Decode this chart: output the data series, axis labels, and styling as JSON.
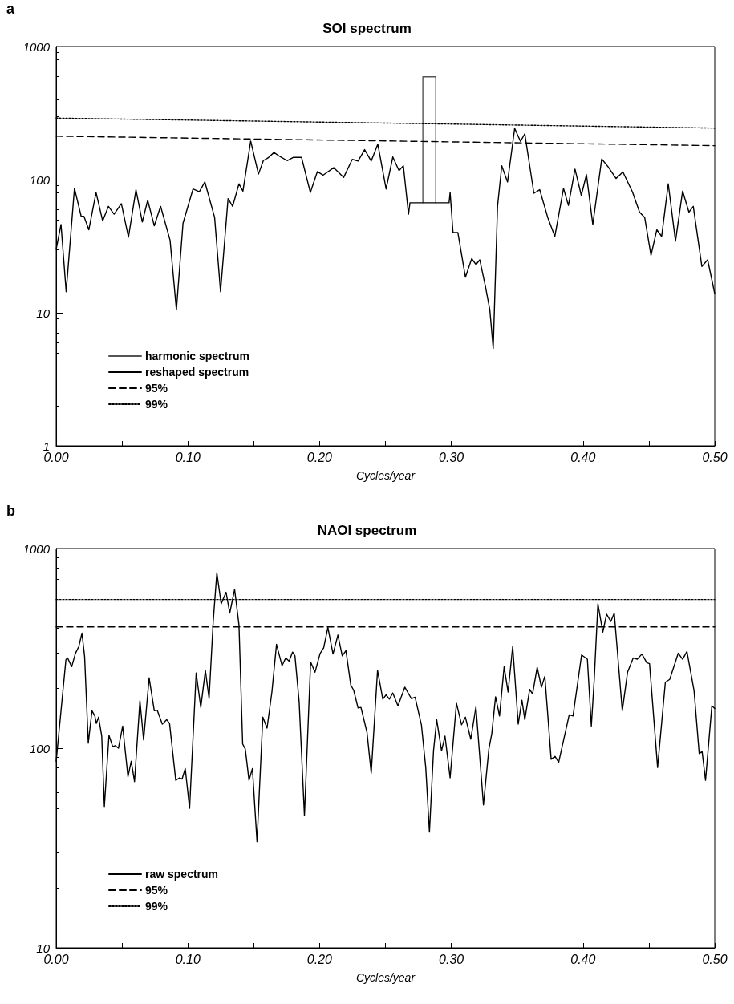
{
  "chart_data": [
    {
      "type": "line",
      "title": "SOI spectrum",
      "xlabel": "Cycles/year",
      "annotations": [
        "a"
      ],
      "log": true,
      "legend": "bottom left",
      "marker": "none",
      "xlim": [
        0,
        0.5
      ],
      "xticks": [
        {
          "value": 0,
          "label": "0.00"
        },
        {
          "value": 0.05,
          "label": null
        },
        {
          "value": 0.1,
          "label": "0.10"
        },
        {
          "value": 0.15,
          "label": null
        },
        {
          "value": 0.2,
          "label": "0.20"
        },
        {
          "value": 0.25,
          "label": null
        },
        {
          "value": 0.3,
          "label": "0.30"
        },
        {
          "value": 0.35,
          "label": null
        },
        {
          "value": 0.4,
          "label": "0.40"
        },
        {
          "value": 0.45,
          "label": null
        },
        {
          "value": 0.5,
          "label": "0.50"
        }
      ],
      "ylim": [
        1,
        1000
      ],
      "yticks": [
        1,
        10,
        100,
        1000
      ],
      "series": [
        {
          "name": "harmonic spectrum",
          "color": "#555555",
          "line_style": "solid",
          "x": [
            0.2784,
            0.2784,
            0.2882,
            0.2882
          ],
          "values": [
            67,
            592,
            592,
            67
          ]
        },
        {
          "name": "reshaped spectrum",
          "color": "#000000",
          "line_style": "solid",
          "x": [
            0,
            0.0037,
            0.0076,
            0.0139,
            0.019,
            0.0211,
            0.0248,
            0.0303,
            0.0353,
            0.0397,
            0.044,
            0.0495,
            0.0549,
            0.0606,
            0.0654,
            0.0695,
            0.0745,
            0.0793,
            0.0865,
            0.0913,
            0.0963,
            0.1039,
            0.1087,
            0.1129,
            0.1203,
            0.1248,
            0.1305,
            0.134,
            0.1388,
            0.1418,
            0.1477,
            0.1536,
            0.1573,
            0.1606,
            0.1654,
            0.1704,
            0.1754,
            0.1802,
            0.1863,
            0.193,
            0.1983,
            0.2026,
            0.2107,
            0.2183,
            0.2248,
            0.2292,
            0.2342,
            0.2392,
            0.2442,
            0.2505,
            0.2556,
            0.2603,
            0.2636,
            0.2675,
            0.2686,
            0.2983,
            0.2991,
            0.3013,
            0.305,
            0.3107,
            0.3155,
            0.3187,
            0.3216,
            0.3259,
            0.3292,
            0.3318,
            0.3351,
            0.3383,
            0.3427,
            0.3481,
            0.3525,
            0.3558,
            0.3627,
            0.3671,
            0.3732,
            0.3786,
            0.3852,
            0.3889,
            0.3939,
            0.3987,
            0.4026,
            0.4074,
            0.4142,
            0.419,
            0.4251,
            0.4303,
            0.4375,
            0.4429,
            0.4468,
            0.4516,
            0.456,
            0.4597,
            0.4647,
            0.4702,
            0.4756,
            0.4804,
            0.4837,
            0.4902,
            0.4946,
            0.5
          ],
          "values": [
            30,
            46,
            14.4,
            86,
            53,
            53,
            42,
            80,
            49,
            63,
            55,
            66,
            37,
            84,
            48,
            70,
            45,
            63,
            35,
            10.5,
            47,
            85,
            81,
            96,
            52,
            14.4,
            72,
            63,
            93,
            82,
            195,
            110,
            139,
            145,
            160,
            148,
            139,
            147,
            147,
            80,
            115,
            108,
            123,
            104,
            142,
            138,
            168,
            138,
            185,
            85,
            148,
            117,
            127,
            55,
            67,
            67,
            80,
            40,
            40,
            18.5,
            25.5,
            23,
            25,
            15.8,
            10.6,
            5.4,
            63,
            127,
            96,
            243,
            194,
            221,
            79,
            84,
            52,
            37.5,
            86,
            64,
            120,
            76,
            109,
            46,
            143,
            125,
            102,
            114,
            81,
            57,
            52,
            27,
            42,
            37.5,
            93,
            34.5,
            82,
            57,
            63,
            22.3,
            25,
            13.9
          ]
        },
        {
          "name": "95%",
          "color": "#000000",
          "line_style": "dashed",
          "x": [
            0,
            0.5
          ],
          "values": [
            212,
            180
          ]
        },
        {
          "name": "99%",
          "color": "#000000",
          "line_style": "dotted",
          "x": [
            0,
            0.5
          ],
          "values": [
            290,
            244
          ]
        }
      ]
    },
    {
      "type": "line",
      "title": "NAOI spectrum",
      "xlabel": "Cycles/year",
      "annotations": [
        "b"
      ],
      "log": true,
      "legend": "bottom left",
      "marker": "none",
      "xlim": [
        0,
        0.5
      ],
      "xticks": [
        {
          "value": 0,
          "label": "0.00"
        },
        {
          "value": 0.05,
          "label": null
        },
        {
          "value": 0.1,
          "label": "0.10"
        },
        {
          "value": 0.15,
          "label": null
        },
        {
          "value": 0.2,
          "label": "0.20"
        },
        {
          "value": 0.25,
          "label": null
        },
        {
          "value": 0.3,
          "label": "0.30"
        },
        {
          "value": 0.35,
          "label": null
        },
        {
          "value": 0.4,
          "label": "0.40"
        },
        {
          "value": 0.45,
          "label": null
        },
        {
          "value": 0.5,
          "label": "0.50"
        }
      ],
      "ylim": [
        10,
        1000
      ],
      "yticks": [
        10,
        100,
        1000
      ],
      "series": [
        {
          "name": "raw spectrum",
          "color": "#000000",
          "line_style": "solid",
          "x": [
            0,
            0.0037,
            0.0074,
            0.0087,
            0.0118,
            0.0146,
            0.0172,
            0.0196,
            0.0216,
            0.0244,
            0.0272,
            0.0294,
            0.0305,
            0.0322,
            0.0346,
            0.0366,
            0.0401,
            0.0429,
            0.0449,
            0.0473,
            0.0505,
            0.0545,
            0.057,
            0.0595,
            0.0636,
            0.0664,
            0.0706,
            0.0745,
            0.0767,
            0.0806,
            0.0839,
            0.0861,
            0.0908,
            0.0937,
            0.0956,
            0.098,
            0.1013,
            0.1063,
            0.1098,
            0.1133,
            0.1161,
            0.1192,
            0.122,
            0.1253,
            0.129,
            0.1318,
            0.1355,
            0.1388,
            0.1416,
            0.1436,
            0.1464,
            0.149,
            0.1525,
            0.1569,
            0.1601,
            0.1638,
            0.1673,
            0.1715,
            0.1743,
            0.1769,
            0.1795,
            0.1813,
            0.1845,
            0.1885,
            0.1932,
            0.1965,
            0.2004,
            0.2031,
            0.2063,
            0.2102,
            0.2139,
            0.2172,
            0.22,
            0.2237,
            0.2259,
            0.2292,
            0.2314,
            0.236,
            0.2392,
            0.244,
            0.248,
            0.2505,
            0.253,
            0.2556,
            0.2595,
            0.2647,
            0.2697,
            0.2725,
            0.2773,
            0.2806,
            0.2834,
            0.2865,
            0.2889,
            0.2926,
            0.2952,
            0.2991,
            0.3039,
            0.3078,
            0.3107,
            0.3148,
            0.3187,
            0.3244,
            0.3285,
            0.3307,
            0.3336,
            0.3366,
            0.3401,
            0.3431,
            0.3466,
            0.3508,
            0.3536,
            0.3558,
            0.3595,
            0.3617,
            0.3652,
            0.3684,
            0.371,
            0.3758,
            0.3787,
            0.3815,
            0.3895,
            0.3924,
            0.3989,
            0.4033,
            0.4063,
            0.4085,
            0.4113,
            0.415,
            0.4179,
            0.4211,
            0.4237,
            0.4298,
            0.4338,
            0.4381,
            0.4412,
            0.4447,
            0.4484,
            0.4505,
            0.4566,
            0.4625,
            0.4658,
            0.4723,
            0.4756,
            0.4789,
            0.4843,
            0.4882,
            0.4904,
            0.493,
            0.4978,
            0.5
          ],
          "values": [
            86,
            154,
            277,
            283,
            256,
            298,
            323,
            377,
            288,
            106,
            154,
            145,
            133,
            143,
            115,
            51,
            116,
            102,
            103,
            100,
            129,
            72,
            86,
            68,
            173,
            110,
            225,
            154,
            155,
            132,
            139,
            133,
            69,
            71,
            70,
            79,
            50,
            238,
            160,
            245,
            177,
            428,
            756,
            529,
            604,
            475,
            624,
            414,
            105,
            99,
            69,
            79,
            34,
            143,
            126,
            191,
            331,
            259,
            283,
            273,
            303,
            290,
            170,
            46,
            270,
            240,
            298,
            318,
            403,
            296,
            369,
            290,
            308,
            207,
            195,
            159,
            160,
            120,
            75,
            245,
            176,
            185,
            176,
            189,
            163,
            202,
            177,
            180,
            131,
            80,
            38,
            97,
            139,
            97,
            115,
            71,
            168,
            131,
            143,
            111,
            161,
            52,
            99,
            118,
            181,
            145,
            256,
            191,
            323,
            132,
            174,
            139,
            197,
            187,
            254,
            202,
            229,
            88,
            91,
            85,
            147,
            145,
            293,
            279,
            129,
            221,
            529,
            381,
            469,
            431,
            475,
            154,
            240,
            283,
            279,
            296,
            268,
            265,
            80,
            214,
            221,
            299,
            279,
            305,
            194,
            94,
            96,
            69,
            163,
            158
          ]
        },
        {
          "name": "95%",
          "color": "#000000",
          "line_style": "dashed",
          "x": [
            0,
            0.5
          ],
          "values": [
            405,
            405
          ]
        },
        {
          "name": "99%",
          "color": "#000000",
          "line_style": "dotted",
          "x": [
            0,
            0.5
          ],
          "values": [
            555,
            555
          ]
        }
      ]
    }
  ]
}
